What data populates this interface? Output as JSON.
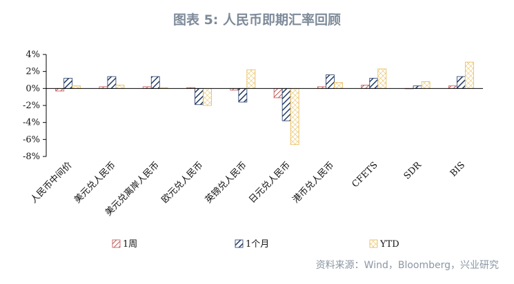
{
  "title": "图表 5: 人民币即期汇率回顾",
  "source": "资料来源：Wind，Bloomberg，兴业研究",
  "colors": {
    "s1": "#c0504d",
    "s2": "#1f3864",
    "s3": "#e6b84b"
  },
  "chart_data": {
    "type": "bar",
    "categories": [
      "人民币中间价",
      "美元兑人民币",
      "美元兑离岸人民币",
      "欧元兑人民币",
      "英镑兑人民币",
      "日元兑人民币",
      "港币兑人民币",
      "CFETS",
      "SDR",
      "BIS"
    ],
    "series": [
      {
        "name": "1周",
        "values": [
          -0.3,
          0.2,
          0.2,
          0.1,
          -0.2,
          -1.1,
          0.2,
          0.4,
          0.0,
          0.3
        ]
      },
      {
        "name": "1个月",
        "values": [
          1.2,
          1.4,
          1.4,
          -1.9,
          -1.6,
          -3.8,
          1.6,
          1.2,
          0.3,
          1.4
        ]
      },
      {
        "name": "YTD",
        "values": [
          0.3,
          0.4,
          0.1,
          -2.0,
          2.2,
          -6.6,
          0.7,
          2.3,
          0.8,
          3.1
        ]
      }
    ],
    "ylim": [
      -8,
      4
    ],
    "yticks": [
      "4%",
      "2%",
      "0%",
      "-2%",
      "-4%",
      "-6%",
      "-8%"
    ],
    "legend_position": "bottom",
    "grid": false
  }
}
